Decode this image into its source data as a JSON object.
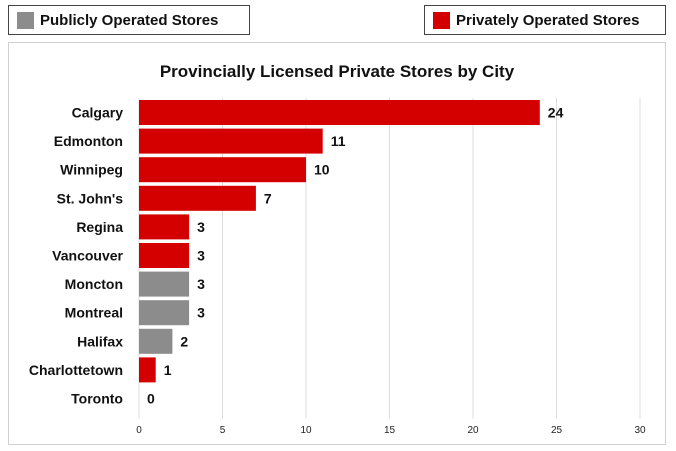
{
  "legend": [
    {
      "label": "Publicly Operated Stores",
      "color": "#8c8c8c"
    },
    {
      "label": "Privately Operated Stores",
      "color": "#d40000"
    }
  ],
  "chart_data": {
    "type": "bar",
    "orientation": "horizontal",
    "title": "Provincially Licensed Private Stores by City",
    "categories": [
      "Calgary",
      "Edmonton",
      "Winnipeg",
      "St. John's",
      "Regina",
      "Vancouver",
      "Moncton",
      "Montreal",
      "Halifax",
      "Charlottetown",
      "Toronto"
    ],
    "values": [
      24,
      11,
      10,
      7,
      3,
      3,
      3,
      3,
      2,
      1,
      0
    ],
    "operation": [
      "Privately Operated Stores",
      "Privately Operated Stores",
      "Privately Operated Stores",
      "Privately Operated Stores",
      "Privately Operated Stores",
      "Privately Operated Stores",
      "Publicly Operated Stores",
      "Publicly Operated Stores",
      "Publicly Operated Stores",
      "Privately Operated Stores",
      "Privately Operated Stores"
    ],
    "xlim": [
      0,
      30
    ],
    "xticks": [
      0,
      5,
      10,
      15,
      20,
      25,
      30
    ],
    "xlabel": "",
    "ylabel": "",
    "grid": "vertical",
    "legend_position": "top"
  }
}
